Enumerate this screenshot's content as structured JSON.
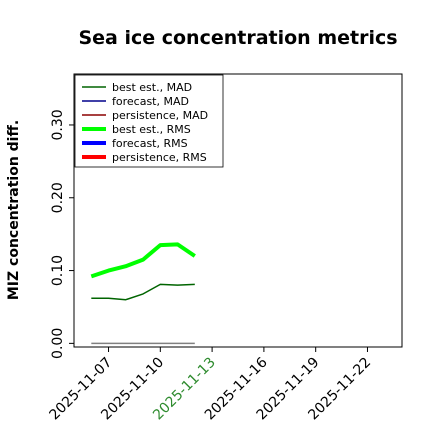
{
  "chart_data": {
    "type": "line",
    "title": "Sea ice concentration metrics",
    "ylabel": "MIZ concentration diff.",
    "xlabel": "",
    "x": [
      "2025-11-06",
      "2025-11-07",
      "2025-11-08",
      "2025-11-09",
      "2025-11-10",
      "2025-11-11",
      "2025-11-12"
    ],
    "xlim": [
      "2025-11-05",
      "2025-11-24"
    ],
    "ylim": [
      -0.005,
      0.37
    ],
    "y_ticks": [
      "0.00",
      "0.10",
      "0.20",
      "0.30"
    ],
    "x_ticks": [
      "2025-11-07",
      "2025-11-10",
      "2025-11-13",
      "2025-11-16",
      "2025-11-19",
      "2025-11-22"
    ],
    "highlighted_x_tick": "2025-11-13",
    "legend_position": "upper-left",
    "grid": false,
    "series": [
      {
        "name": "best est., MAD",
        "color": "#006400",
        "style": "thin",
        "values": [
          0.062,
          0.062,
          0.06,
          0.068,
          0.081,
          0.08,
          0.081
        ]
      },
      {
        "name": "forecast,  MAD",
        "color": "#00008b",
        "style": "thin",
        "values": [
          null,
          null,
          null,
          null,
          null,
          null,
          null
        ]
      },
      {
        "name": "persistence, MAD",
        "color": "#8b0000",
        "style": "thin",
        "values": [
          null,
          null,
          null,
          null,
          null,
          null,
          null
        ]
      },
      {
        "name": "best est., RMS",
        "color": "#00ff00",
        "style": "thick",
        "values": [
          0.092,
          0.1,
          0.106,
          0.115,
          0.135,
          0.136,
          0.12
        ]
      },
      {
        "name": "forecast,  RMS",
        "color": "#0000ff",
        "style": "thick",
        "values": [
          null,
          null,
          null,
          null,
          null,
          null,
          null
        ]
      },
      {
        "name": "persistence, RMS",
        "color": "#ff0000",
        "style": "thick",
        "values": [
          null,
          null,
          null,
          null,
          null,
          null,
          null
        ]
      },
      {
        "name": "",
        "color": "#808080",
        "style": "thin",
        "legend": false,
        "values": [
          0.0,
          0.0,
          0.0,
          0.0,
          0.0,
          0.0,
          0.0
        ]
      }
    ]
  }
}
